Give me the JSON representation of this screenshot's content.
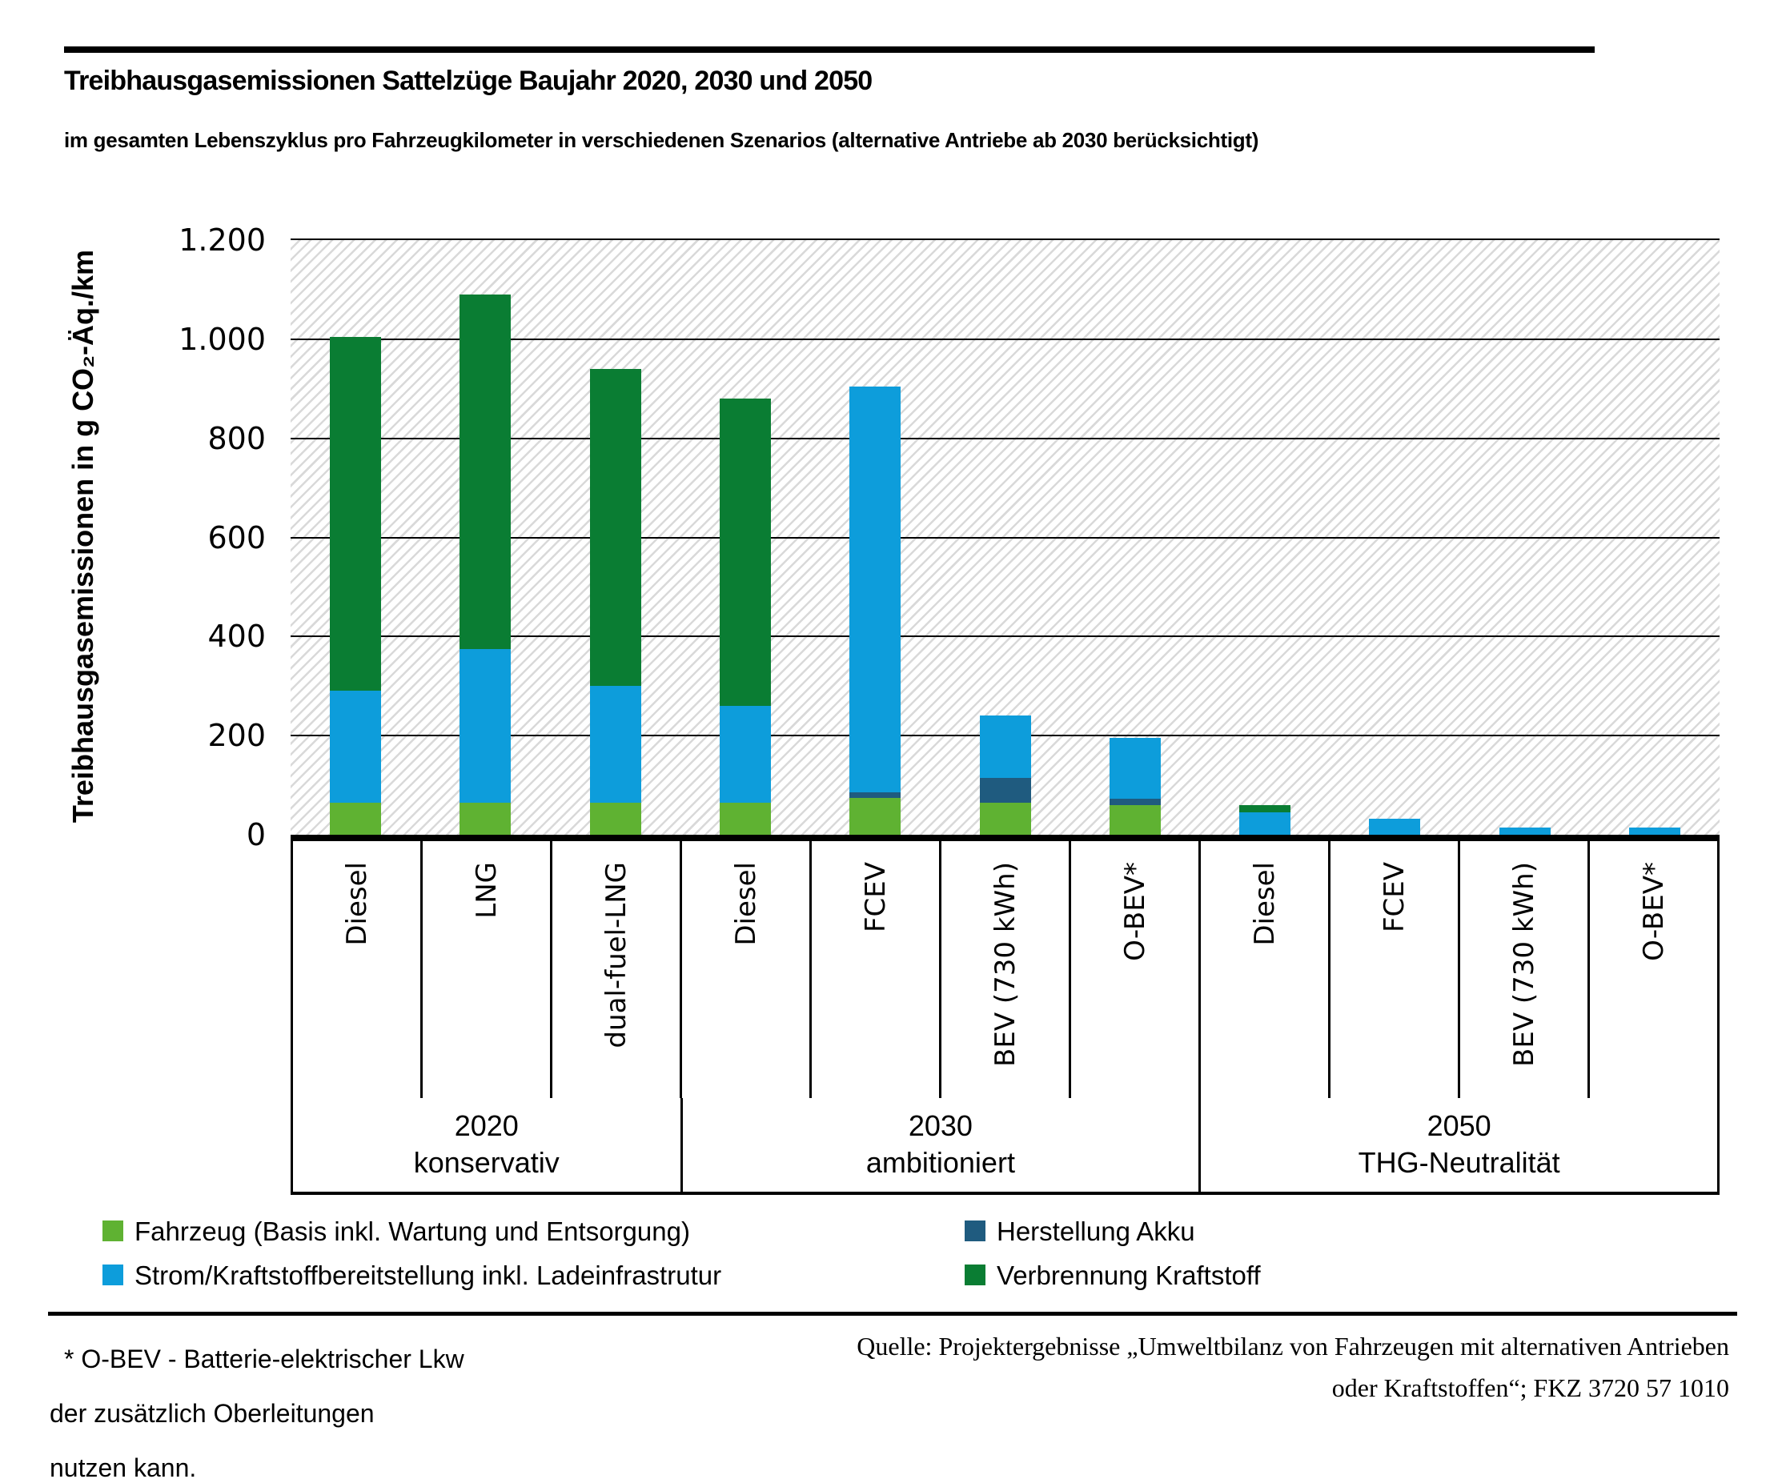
{
  "chart_data": {
    "type": "stacked-bar",
    "title": "Treibhausgasemissionen Sattelzüge Baujahr 2020, 2030 und 2050",
    "subtitle": "im gesamten Lebenszyklus pro Fahrzeugkilometer in verschiedenen Szenarios (alternative Antriebe ab 2030 berücksichtigt)",
    "ylabel": "Treibhausgasemissionen in g CO₂-Äq./km",
    "xlabel": "",
    "unit": "g CO₂-Äq./km",
    "ylim": [
      0,
      1200
    ],
    "ytick_interval": 200,
    "yticks": [
      {
        "label": "1.200",
        "value": 1200
      },
      {
        "label": "1.000",
        "value": 1000
      },
      {
        "label": "800",
        "value": 800
      },
      {
        "label": "600",
        "value": 600
      },
      {
        "label": "400",
        "value": 400
      },
      {
        "label": "200",
        "value": 200
      },
      {
        "label": "0",
        "value": 0
      }
    ],
    "grid": "horizontal",
    "plot_background": "diagonal-hatch",
    "legend_position": "bottom",
    "segments": {
      "fahrzeug": {
        "label": "Fahrzeug (Basis inkl. Wartung und Entsorgung)",
        "color": "#5FB232"
      },
      "akku": {
        "label": "Herstellung Akku",
        "color": "#1F5B7F"
      },
      "strom": {
        "label": "Strom/Kraftstoffbereitstellung inkl. Ladeinfrastrutur",
        "color": "#0D9DDB"
      },
      "verbrennung": {
        "label": "Verbrennung Kraftstoff",
        "color": "#0A7D33"
      }
    },
    "stack_order": [
      "fahrzeug",
      "akku",
      "strom",
      "verbrennung"
    ],
    "groups": [
      {
        "year": "2020",
        "scenario": "konservativ",
        "bars": [
          {
            "label": "Diesel",
            "values": {
              "fahrzeug": 65,
              "strom": 225,
              "verbrennung": 715
            }
          },
          {
            "label": "LNG",
            "values": {
              "fahrzeug": 65,
              "strom": 310,
              "verbrennung": 715
            }
          },
          {
            "label": "dual-fuel-LNG",
            "values": {
              "fahrzeug": 65,
              "strom": 235,
              "verbrennung": 640
            }
          }
        ]
      },
      {
        "year": "2030",
        "scenario": "ambitioniert",
        "bars": [
          {
            "label": "Diesel",
            "values": {
              "fahrzeug": 65,
              "strom": 195,
              "verbrennung": 620
            }
          },
          {
            "label": "FCEV",
            "values": {
              "fahrzeug": 75,
              "akku": 10,
              "strom": 820
            }
          },
          {
            "label": "BEV (730 kWh)",
            "values": {
              "fahrzeug": 65,
              "akku": 50,
              "strom": 125
            }
          },
          {
            "label": "O-BEV*",
            "values": {
              "fahrzeug": 60,
              "akku": 12,
              "strom": 123
            }
          }
        ]
      },
      {
        "year": "2050",
        "scenario": "THG-Neutralität",
        "bars": [
          {
            "label": "Diesel",
            "values": {
              "strom": 45,
              "verbrennung": 15
            }
          },
          {
            "label": "FCEV",
            "values": {
              "strom": 32
            }
          },
          {
            "label": "BEV (730 kWh)",
            "values": {
              "strom": 15
            }
          },
          {
            "label": "O-BEV*",
            "values": {
              "strom": 14
            }
          }
        ]
      }
    ]
  },
  "legend": {
    "columns": [
      [
        "fahrzeug",
        "strom"
      ],
      [
        "akku",
        "verbrennung"
      ]
    ]
  },
  "footnote": {
    "lines": [
      "* O-BEV - Batterie-elektrischer Lkw",
      "der zusätzlich Oberleitungen",
      "nutzen kann."
    ]
  },
  "source": {
    "line1": "Quelle: Projektergebnisse „Umweltbilanz von Fahrzeugen mit alternativen Antrieben",
    "line2": "oder Kraftstoffen“; FKZ 3720 57 1010"
  }
}
